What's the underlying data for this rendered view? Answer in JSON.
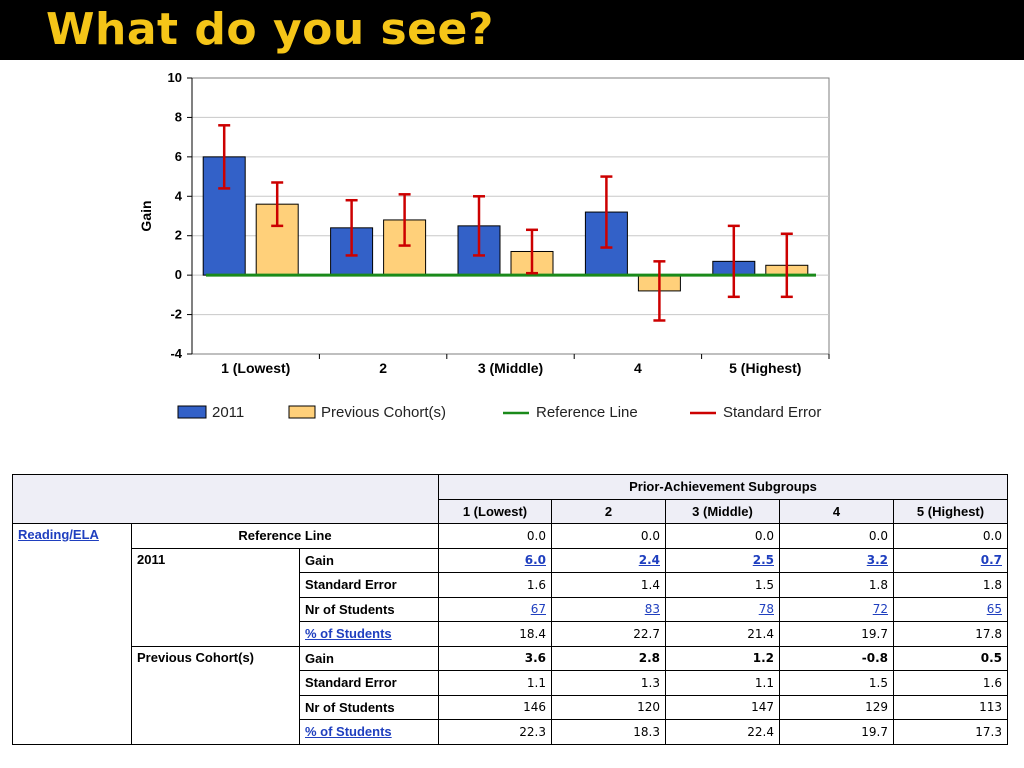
{
  "page": {
    "title": "What do you see?"
  },
  "colors": {
    "series_2011": "#3361c8",
    "series_prev": "#ffd07a",
    "reference_line": "#1a8a1a",
    "error_bar": "#cc0000",
    "title": "#f5c518"
  },
  "chart_data": {
    "type": "bar",
    "categories": [
      "1 (Lowest)",
      "2",
      "3 (Middle)",
      "4",
      "5 (Highest)"
    ],
    "ylabel": "Gain",
    "xlabel": "",
    "ylim": [
      -4,
      10
    ],
    "yticks": [
      10,
      8,
      6,
      4,
      2,
      0,
      -2,
      -4
    ],
    "grid": true,
    "legend_position": "bottom",
    "series": [
      {
        "name": "2011",
        "values": [
          6.0,
          2.4,
          2.5,
          3.2,
          0.7
        ],
        "errors": [
          1.6,
          1.4,
          1.5,
          1.8,
          1.8
        ]
      },
      {
        "name": "Previous Cohort(s)",
        "values": [
          3.6,
          2.8,
          1.2,
          -0.8,
          0.5
        ],
        "errors": [
          1.1,
          1.3,
          1.1,
          1.5,
          1.6
        ]
      }
    ],
    "reference_line": {
      "name": "Reference Line",
      "value": 0
    },
    "error_legend": "Standard Error"
  },
  "table": {
    "group_header": "Prior-Achievement Subgroups",
    "columns": [
      "1 (Lowest)",
      "2",
      "3 (Middle)",
      "4",
      "5 (Highest)"
    ],
    "subject": "Reading/ELA",
    "reference_label": "Reference Line",
    "reference_values": [
      "0.0",
      "0.0",
      "0.0",
      "0.0",
      "0.0"
    ],
    "groups": [
      {
        "name": "2011",
        "rows": [
          {
            "label": "Gain",
            "label_link": false,
            "values": [
              "6.0",
              "2.4",
              "2.5",
              "3.2",
              "0.7"
            ]
          },
          {
            "label": "Standard Error",
            "label_link": false,
            "values": [
              "1.6",
              "1.4",
              "1.5",
              "1.8",
              "1.8"
            ]
          },
          {
            "label": "Nr of Students",
            "label_link": false,
            "values": [
              "67",
              "83",
              "78",
              "72",
              "65"
            ]
          },
          {
            "label": "% of Students",
            "label_link": true,
            "values": [
              "18.4",
              "22.7",
              "21.4",
              "19.7",
              "17.8"
            ]
          }
        ]
      },
      {
        "name": "Previous Cohort(s)",
        "rows": [
          {
            "label": "Gain",
            "label_link": false,
            "values": [
              "3.6",
              "2.8",
              "1.2",
              "-0.8",
              "0.5"
            ]
          },
          {
            "label": "Standard Error",
            "label_link": false,
            "values": [
              "1.1",
              "1.3",
              "1.1",
              "1.5",
              "1.6"
            ]
          },
          {
            "label": "Nr of Students",
            "label_link": false,
            "values": [
              "146",
              "120",
              "147",
              "129",
              "113"
            ]
          },
          {
            "label": "% of Students",
            "label_link": true,
            "values": [
              "22.3",
              "18.3",
              "22.4",
              "19.7",
              "17.3"
            ]
          }
        ]
      }
    ]
  }
}
